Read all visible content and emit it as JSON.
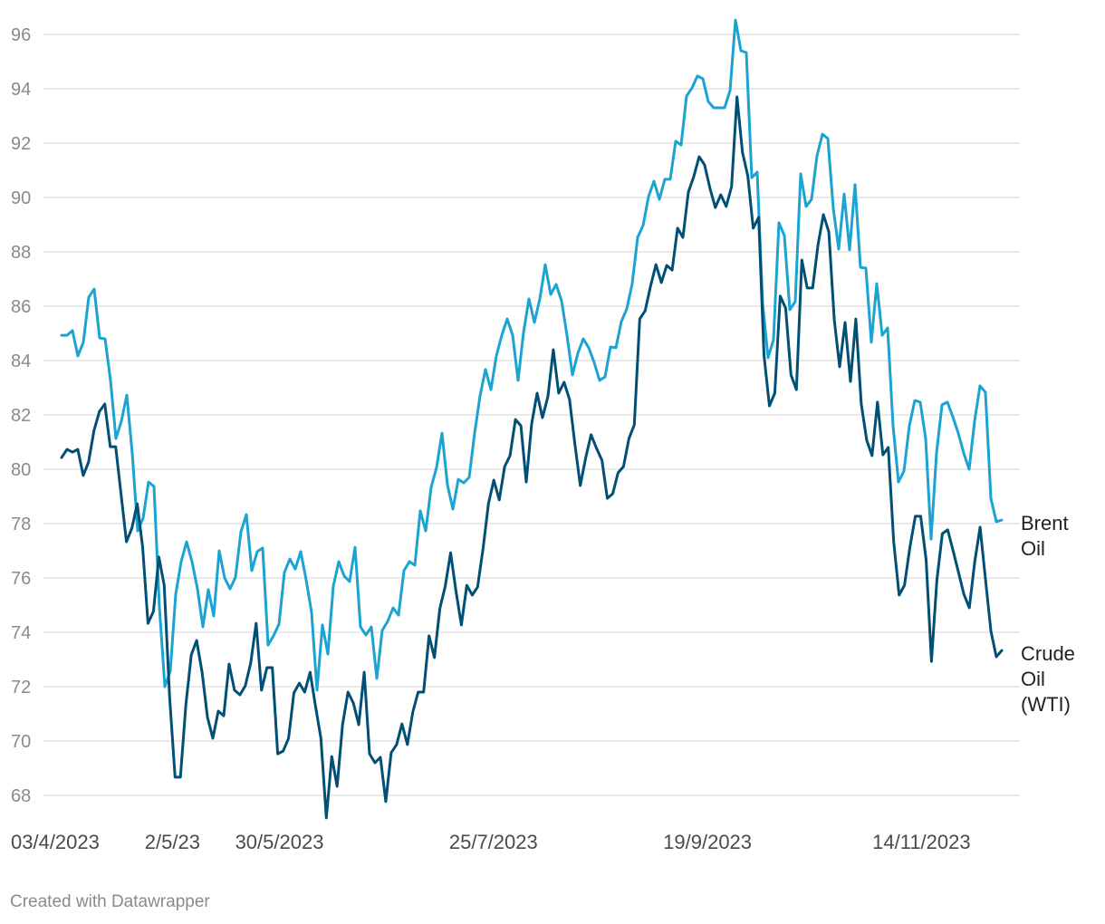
{
  "chart_data": {
    "type": "line",
    "title": "",
    "xlabel": "",
    "ylabel": "",
    "ylim": [
      68,
      96
    ],
    "yticks": [
      68,
      70,
      72,
      74,
      76,
      78,
      80,
      82,
      84,
      86,
      88,
      90,
      92,
      94,
      96
    ],
    "grid": true,
    "x_unit": "days since 03/4/2023",
    "x_range_days": [
      0,
      246
    ],
    "xticks": [
      {
        "label": "03/4/2023",
        "day": 0
      },
      {
        "label": "2/5/23",
        "day": 29
      },
      {
        "label": "30/5/2023",
        "day": 57
      },
      {
        "label": "25/7/2023",
        "day": 113
      },
      {
        "label": "19/9/2023",
        "day": 169
      },
      {
        "label": "14/11/2023",
        "day": 225
      }
    ],
    "series": [
      {
        "name": "Brent Oil",
        "label_lines": [
          "Brent",
          "Oil"
        ],
        "color": "#1ba3d1",
        "values": [
          84.93,
          84.93,
          85.1,
          84.17,
          84.67,
          86.33,
          86.63,
          84.83,
          84.8,
          83.27,
          81.13,
          81.77,
          82.73,
          80.6,
          77.73,
          78.2,
          79.53,
          79.37,
          74.93,
          72.0,
          72.57,
          75.4,
          76.6,
          77.33,
          76.6,
          75.6,
          74.2,
          75.57,
          74.6,
          77.0,
          76.0,
          75.6,
          76.03,
          77.7,
          78.33,
          76.27,
          76.97,
          77.1,
          73.53,
          73.87,
          74.3,
          76.2,
          76.7,
          76.33,
          76.97,
          75.93,
          74.73,
          71.87,
          74.27,
          73.2,
          75.7,
          76.6,
          76.07,
          75.87,
          77.13,
          74.2,
          73.9,
          74.2,
          72.3,
          74.07,
          74.4,
          74.9,
          74.63,
          76.27,
          76.6,
          76.47,
          78.47,
          77.73,
          79.33,
          80.07,
          81.33,
          79.43,
          78.53,
          79.63,
          79.5,
          79.7,
          81.33,
          82.7,
          83.67,
          82.93,
          84.17,
          84.93,
          85.53,
          84.93,
          83.27,
          85.03,
          86.27,
          85.4,
          86.27,
          87.53,
          86.43,
          86.8,
          86.2,
          84.93,
          83.47,
          84.27,
          84.8,
          84.47,
          83.93,
          83.27,
          83.4,
          84.5,
          84.47,
          85.43,
          85.9,
          86.83,
          88.53,
          88.97,
          90.03,
          90.6,
          89.93,
          90.67,
          90.67,
          92.07,
          91.93,
          93.73,
          94.03,
          94.47,
          94.37,
          93.53,
          93.3,
          93.3,
          93.3,
          93.93,
          96.53,
          95.4,
          95.33,
          90.73,
          90.93,
          86.1,
          84.1,
          84.77,
          89.07,
          88.6,
          85.87,
          86.17,
          90.87,
          89.67,
          89.93,
          91.53,
          92.33,
          92.17,
          89.6,
          88.1,
          90.13,
          88.07,
          90.47,
          87.43,
          87.4,
          84.67,
          86.83,
          84.93,
          85.2,
          81.6,
          79.53,
          79.93,
          81.6,
          82.53,
          82.47,
          81.13,
          77.43,
          80.6,
          82.37,
          82.47,
          81.93,
          81.33,
          80.6,
          80.0,
          81.77,
          83.07,
          82.83,
          78.93,
          78.07,
          78.13
        ]
      },
      {
        "name": "Crude Oil (WTI)",
        "label_lines": [
          "Crude",
          "Oil",
          "(WTI)"
        ],
        "color": "#004f74",
        "values": [
          80.43,
          80.73,
          80.63,
          80.73,
          79.77,
          80.27,
          81.43,
          82.13,
          82.4,
          80.83,
          80.83,
          79.1,
          77.33,
          77.83,
          78.73,
          77.13,
          74.33,
          74.77,
          76.77,
          75.73,
          71.6,
          68.67,
          68.67,
          71.33,
          73.17,
          73.7,
          72.53,
          70.87,
          70.1,
          71.1,
          70.93,
          72.83,
          71.87,
          71.7,
          72.03,
          72.87,
          74.33,
          71.87,
          72.7,
          72.7,
          69.53,
          69.63,
          70.1,
          71.77,
          72.13,
          71.8,
          72.53,
          71.27,
          70.1,
          67.17,
          69.43,
          68.33,
          70.6,
          71.8,
          71.4,
          70.6,
          72.53,
          69.53,
          69.2,
          69.4,
          67.77,
          69.57,
          69.87,
          70.63,
          69.87,
          71.07,
          71.8,
          71.8,
          73.87,
          73.07,
          74.87,
          75.7,
          76.93,
          75.5,
          74.27,
          75.73,
          75.37,
          75.67,
          77.07,
          78.73,
          79.6,
          78.87,
          80.1,
          80.5,
          81.83,
          81.6,
          79.53,
          81.67,
          82.8,
          81.9,
          82.67,
          84.4,
          82.8,
          83.2,
          82.57,
          80.93,
          79.4,
          80.43,
          81.27,
          80.77,
          80.33,
          78.93,
          79.1,
          79.87,
          80.1,
          81.13,
          81.63,
          85.53,
          85.83,
          86.73,
          87.53,
          86.87,
          87.5,
          87.33,
          88.87,
          88.53,
          90.2,
          90.77,
          91.5,
          91.2,
          90.33,
          89.63,
          90.1,
          89.67,
          90.4,
          93.7,
          91.67,
          90.8,
          88.87,
          89.27,
          84.2,
          82.33,
          82.8,
          86.37,
          85.93,
          83.47,
          82.93,
          87.7,
          86.67,
          86.67,
          88.27,
          89.37,
          88.73,
          85.5,
          83.77,
          85.4,
          83.23,
          85.53,
          82.4,
          81.07,
          80.5,
          82.47,
          80.53,
          80.8,
          77.33,
          75.37,
          75.73,
          77.13,
          78.27,
          78.27,
          76.67,
          72.93,
          75.93,
          77.63,
          77.77,
          77.0,
          76.2,
          75.4,
          74.9,
          76.6,
          77.87,
          75.93,
          74.03,
          73.1,
          73.33
        ]
      }
    ]
  },
  "footer": "Created with Datawrapper"
}
